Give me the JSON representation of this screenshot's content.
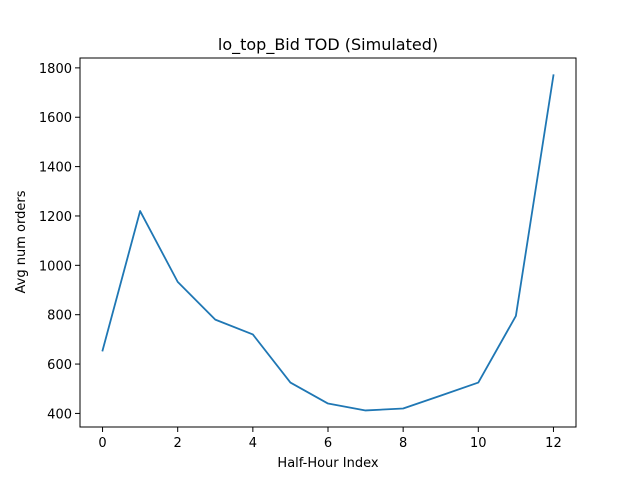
{
  "chart_data": {
    "type": "line",
    "title": "lo_top_Bid TOD (Simulated)",
    "xlabel": "Half-Hour Index",
    "ylabel": "Avg num orders",
    "xlim": [
      -0.6,
      12.6
    ],
    "ylim": [
      345,
      1840
    ],
    "x_ticks": [
      0,
      2,
      4,
      6,
      8,
      10,
      12
    ],
    "y_ticks": [
      400,
      600,
      800,
      1000,
      1200,
      1400,
      1600,
      1800
    ],
    "grid": false,
    "legend": "none",
    "series": [
      {
        "color": "#1f77b4",
        "x": [
          0,
          1,
          2,
          3,
          4,
          5,
          6,
          7,
          8,
          9,
          10,
          11,
          12
        ],
        "y": [
          655,
          1220,
          933,
          780,
          720,
          525,
          440,
          412,
          420,
          472,
          525,
          795,
          1770
        ]
      }
    ]
  }
}
